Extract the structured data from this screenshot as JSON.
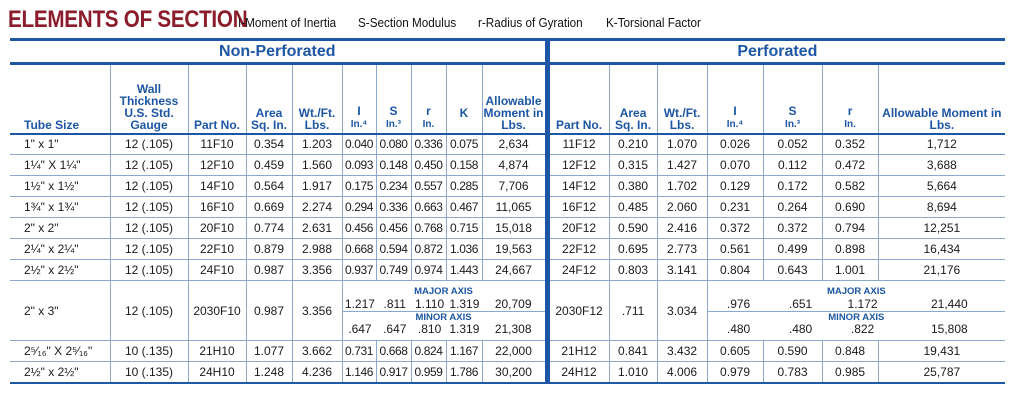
{
  "title": "ELEMENTS OF SECTION",
  "legend": [
    "I-Moment of Inertia",
    "S-Section Modulus",
    "r-Radius of Gyration",
    "K-Torsional Factor"
  ],
  "sections": {
    "non_perforated": "Non-Perforated",
    "perforated": "Perforated"
  },
  "headers": {
    "tube_size": "Tube Size",
    "wall": "Wall Thickness U.S. Std. Gauge",
    "part_no": "Part No.",
    "area": "Area Sq. In.",
    "wt": "Wt./Ft. Lbs.",
    "I": "I",
    "I_unit": "In.⁴",
    "S": "S",
    "S_unit": "In.³",
    "r": "r",
    "r_unit": "In.",
    "K": "K",
    "allow": "Allowable Moment in Lbs."
  },
  "axis_labels": {
    "major": "MAJOR AXIS",
    "minor": "MINOR AXIS"
  },
  "rows": [
    [
      "1\" x 1\"",
      "12 (.105)",
      "11F10",
      "0.354",
      "1.203",
      "0.040",
      "0.080",
      "0.336",
      "0.075",
      "2,634",
      "11F12",
      "0.210",
      "1.070",
      "0.026",
      "0.052",
      "0.352",
      "1,712"
    ],
    [
      "1¼\" X 1¼\"",
      "12 (.105)",
      "12F10",
      "0.459",
      "1.560",
      "0.093",
      "0.148",
      "0.450",
      "0.158",
      "4,874",
      "12F12",
      "0.315",
      "1.427",
      "0.070",
      "0.112",
      "0.472",
      "3,688"
    ],
    [
      "1½\" x 1½\"",
      "12 (.105)",
      "14F10",
      "0.564",
      "1.917",
      "0.175",
      "0.234",
      "0.557",
      "0.285",
      "7,706",
      "14F12",
      "0.380",
      "1.702",
      "0.129",
      "0.172",
      "0.582",
      "5,664"
    ],
    [
      "1¾\" x 1¾\"",
      "12 (.105)",
      "16F10",
      "0.669",
      "2.274",
      "0.294",
      "0.336",
      "0.663",
      "0.467",
      "11,065",
      "16F12",
      "0.485",
      "2.060",
      "0.231",
      "0.264",
      "0.690",
      "8,694"
    ],
    [
      "2\" x 2\"",
      "12 (.105)",
      "20F10",
      "0.774",
      "2.631",
      "0.456",
      "0.456",
      "0.768",
      "0.715",
      "15,018",
      "20F12",
      "0.590",
      "2.416",
      "0.372",
      "0.372",
      "0.794",
      "12,251"
    ],
    [
      "2¼\" x 2¼\"",
      "12 (.105)",
      "22F10",
      "0.879",
      "2.988",
      "0.668",
      "0.594",
      "0.872",
      "1.036",
      "19,563",
      "22F12",
      "0.695",
      "2.773",
      "0.561",
      "0.499",
      "0.898",
      "16,434"
    ],
    [
      "2½\" x 2½\"",
      "12 (.105)",
      "24F10",
      "0.987",
      "3.356",
      "0.937",
      "0.749",
      "0.974",
      "1.443",
      "24,667",
      "24F12",
      "0.803",
      "3.141",
      "0.804",
      "0.643",
      "1.001",
      "21,176"
    ]
  ],
  "special_row": {
    "tube": "2\" x 3\"",
    "wall": "12 (.105)",
    "part": "2030F10",
    "area": "0.987",
    "wt": "3.356",
    "major": {
      "I": "1.217",
      "S": ".811",
      "r": "1.110",
      "K": "1.319",
      "allow": "20,709"
    },
    "minor": {
      "I": ".647",
      "S": ".647",
      "r": ".810",
      "K": "1.319",
      "allow": "21,308"
    },
    "perf_part": "2030F12",
    "perf_area": ".711",
    "perf_wt": "3.034",
    "perf_major": {
      "I": ".976",
      "S": ".651",
      "r": "1.172",
      "allow": "21,440"
    },
    "perf_minor": {
      "I": ".480",
      "S": ".480",
      "r": ".822",
      "allow": "15,808"
    }
  },
  "rows_after": [
    [
      "2⁵⁄₁₆\" X 2⁵⁄₁₆\"",
      "10 (.135)",
      "21H10",
      "1.077",
      "3.662",
      "0.731",
      "0.668",
      "0.824",
      "1.167",
      "22,000",
      "21H12",
      "0.841",
      "3.432",
      "0.605",
      "0.590",
      "0.848",
      "19,431"
    ],
    [
      "2½\" x 2½\"",
      "10 (.135)",
      "24H10",
      "1.248",
      "4.236",
      "1.146",
      "0.917",
      "0.959",
      "1.786",
      "30,200",
      "24H12",
      "1.010",
      "4.006",
      "0.979",
      "0.783",
      "0.985",
      "25,787"
    ]
  ]
}
